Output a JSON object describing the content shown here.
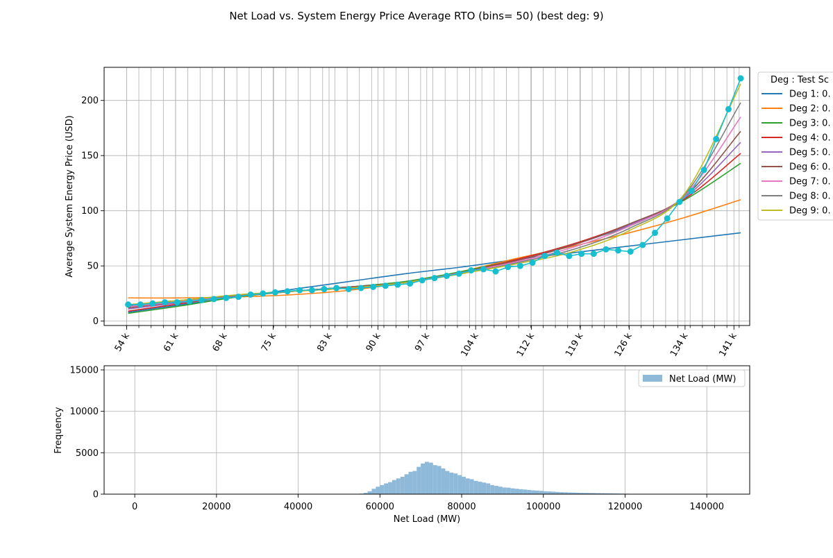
{
  "figure_title": "Net Load vs. System Energy Price Average RTO (bins= 50) (best deg: 9)",
  "colors": {
    "deg1": "#1f77b4",
    "deg2": "#ff7f0e",
    "deg3": "#2ca02c",
    "deg4": "#d62728",
    "deg5": "#9467bd",
    "deg6": "#8c564b",
    "deg7": "#e377c2",
    "deg8": "#7f7f7f",
    "deg9": "#bcbd22",
    "observed": "#17becf",
    "histogram": "#8fb9d9",
    "grid": "#b0b0b0"
  },
  "chart_data": [
    {
      "type": "line",
      "ylabel": "Average System Energy Price (USD)",
      "xlabel": "",
      "xlim": [
        50780,
        143260
      ],
      "ylim": [
        -4,
        230
      ],
      "yticks": [
        0,
        50,
        100,
        150,
        200
      ],
      "xticks": [
        {
          "label": "54 k",
          "value": 54000
        },
        {
          "label": "61 k",
          "value": 61000
        },
        {
          "label": "68 k",
          "value": 68000
        },
        {
          "label": "75 k",
          "value": 75000
        },
        {
          "label": "83 k",
          "value": 83000
        },
        {
          "label": "90 k",
          "value": 90000
        },
        {
          "label": "97 k",
          "value": 97000
        },
        {
          "label": "104 k",
          "value": 104000
        },
        {
          "label": "112 k",
          "value": 112000
        },
        {
          "label": "119 k",
          "value": 119000
        },
        {
          "label": "126 k",
          "value": 126000
        },
        {
          "label": "134 k",
          "value": 134000
        },
        {
          "label": "141 k",
          "value": 141000
        }
      ],
      "minor_grid_step": 1755,
      "grid": true,
      "legend": {
        "title": "Deg : Test Sc",
        "placement": "outside-right",
        "entries": [
          "Deg 1: 0.",
          "Deg 2: 0.",
          "Deg 3: 0.",
          "Deg 4: 0.",
          "Deg 5: 0.",
          "Deg 6: 0.",
          "Deg 7: 0.",
          "Deg 8: 0.",
          "Deg 9: 0."
        ]
      },
      "observed": {
        "x": [
          54220,
          55980,
          57730,
          59490,
          61240,
          63000,
          64750,
          66510,
          68260,
          70020,
          71770,
          73530,
          75280,
          77040,
          78790,
          80550,
          82300,
          84060,
          85810,
          87570,
          89320,
          91080,
          92830,
          94590,
          96340,
          98100,
          99850,
          101610,
          103360,
          105120,
          106870,
          108630,
          110380,
          112140,
          113890,
          115650,
          117400,
          119160,
          120910,
          122670,
          124420,
          126180,
          127930,
          129690,
          131440,
          133200,
          134950,
          136710,
          138460,
          140220,
          141970
        ],
        "y": [
          15,
          15,
          16,
          17,
          17,
          18,
          19,
          20,
          21,
          22,
          24,
          25,
          26,
          27,
          28,
          28,
          29,
          30,
          29,
          30,
          31,
          32,
          33,
          34,
          37,
          39,
          41,
          43,
          46,
          47,
          45,
          49,
          50,
          53,
          59,
          62,
          59,
          61,
          61,
          65,
          64,
          63,
          69,
          80,
          93,
          108,
          118,
          137,
          165,
          192,
          220
        ]
      },
      "fits": [
        {
          "name": "Deg 1",
          "x": [
            54220,
            62000,
            70000,
            78000,
            86000,
            94000,
            102000,
            110000,
            118000,
            126000,
            134000,
            141970
          ],
          "y": [
            8,
            15,
            22,
            29,
            36,
            43,
            49,
            56,
            62,
            68,
            74,
            80
          ]
        },
        {
          "name": "Deg 2",
          "x": [
            54220,
            62000,
            70000,
            78000,
            86000,
            94000,
            102000,
            110000,
            118000,
            126000,
            134000,
            141970
          ],
          "y": [
            21,
            21,
            22,
            24,
            28,
            35,
            45,
            57,
            68,
            80,
            94,
            110
          ]
        },
        {
          "name": "Deg 3",
          "x": [
            54220,
            62000,
            70000,
            78000,
            86000,
            94000,
            102000,
            110000,
            118000,
            126000,
            134000,
            141970
          ],
          "y": [
            7,
            14,
            22,
            27,
            31,
            36,
            45,
            56,
            70,
            86,
            110,
            143
          ]
        },
        {
          "name": "Deg 4",
          "x": [
            54220,
            62000,
            70000,
            78000,
            86000,
            94000,
            102000,
            110000,
            118000,
            126000,
            134000,
            141970
          ],
          "y": [
            9,
            16,
            23,
            27,
            31,
            35,
            44,
            56,
            70,
            88,
            111,
            152
          ]
        },
        {
          "name": "Deg 5",
          "x": [
            54220,
            62000,
            70000,
            78000,
            86000,
            94000,
            102000,
            110000,
            118000,
            126000,
            134000,
            141970
          ],
          "y": [
            11,
            17,
            23,
            27,
            31,
            35,
            44,
            55,
            69,
            87,
            112,
            162
          ]
        },
        {
          "name": "Deg 6",
          "x": [
            54220,
            62000,
            70000,
            78000,
            86000,
            94000,
            102000,
            110000,
            118000,
            126000,
            134000,
            141970
          ],
          "y": [
            12,
            18,
            23,
            27,
            31,
            35,
            44,
            55,
            69,
            88,
            113,
            172
          ]
        },
        {
          "name": "Deg 7",
          "x": [
            54220,
            62000,
            70000,
            78000,
            86000,
            94000,
            102000,
            110000,
            118000,
            126000,
            134000,
            141970
          ],
          "y": [
            13,
            18,
            23,
            27,
            30,
            35,
            44,
            54,
            67,
            86,
            114,
            185
          ]
        },
        {
          "name": "Deg 8",
          "x": [
            54220,
            62000,
            70000,
            78000,
            86000,
            94000,
            102000,
            110000,
            118000,
            126000,
            134000,
            141970
          ],
          "y": [
            14,
            19,
            23,
            27,
            30,
            35,
            43,
            53,
            65,
            84,
            115,
            198
          ]
        },
        {
          "name": "Deg 9",
          "x": [
            54220,
            62000,
            70000,
            78000,
            86000,
            94000,
            102000,
            110000,
            118000,
            126000,
            134000,
            141970
          ],
          "y": [
            15,
            19,
            24,
            27,
            30,
            35,
            43,
            52,
            63,
            82,
            116,
            215
          ]
        }
      ]
    },
    {
      "type": "bar",
      "xlabel": "Net Load (MW)",
      "ylabel": "Frequency",
      "xlim": [
        -7500,
        150500
      ],
      "ylim": [
        0,
        15500
      ],
      "xticks": [
        0,
        20000,
        40000,
        60000,
        80000,
        100000,
        120000,
        140000
      ],
      "yticks": [
        0,
        5000,
        10000,
        15000
      ],
      "grid": true,
      "legend": {
        "entries": [
          "Net Load (MW)"
        ],
        "placement": "upper right"
      },
      "bin_width": 1000,
      "bin_start": 54000,
      "counts": [
        20,
        60,
        150,
        350,
        650,
        900,
        1100,
        1300,
        1450,
        1700,
        1900,
        2100,
        2400,
        2700,
        2800,
        3300,
        3700,
        3900,
        3800,
        3500,
        3400,
        3100,
        2800,
        2600,
        2500,
        2300,
        2100,
        1900,
        1800,
        1600,
        1500,
        1400,
        1300,
        1100,
        1000,
        900,
        800,
        780,
        700,
        650,
        600,
        560,
        500,
        460,
        430,
        400,
        350,
        330,
        300,
        270,
        240,
        220,
        200,
        190,
        170,
        160,
        150,
        140,
        130,
        120,
        110,
        100,
        90,
        80,
        70,
        60,
        50,
        40,
        30,
        20,
        15,
        10,
        5,
        4,
        3,
        2,
        1,
        1,
        1,
        1,
        1,
        1,
        1,
        1,
        1,
        1,
        1,
        1,
        1
      ]
    }
  ]
}
